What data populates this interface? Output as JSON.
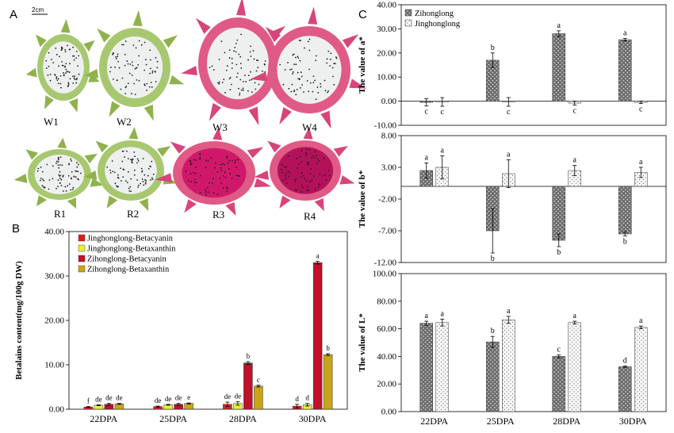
{
  "colors": {
    "jh_betacyanin": "#e31b1b",
    "jh_betaxanthin": "#e6f03a",
    "zh_betacyanin": "#c0102a",
    "zh_betaxanthin": "#c9a418",
    "zihonglong_fill": "#707070",
    "jinghonglong_fill": "#f2f2f2",
    "peel_green": "#a8c870",
    "peel_pink": "#e05a86",
    "flesh_white": "#eef0f0",
    "flesh_red": "#b3125a",
    "seeds": "#1d1d1d"
  },
  "panel_a": {
    "letter": "A",
    "scale_label": "2cm",
    "fruits": [
      {
        "label": "W1",
        "peel": "green",
        "flesh": "white"
      },
      {
        "label": "W2",
        "peel": "green",
        "flesh": "white"
      },
      {
        "label": "W3",
        "peel": "pink",
        "flesh": "white"
      },
      {
        "label": "W4",
        "peel": "pink",
        "flesh": "white"
      },
      {
        "label": "R1",
        "peel": "green",
        "flesh": "white"
      },
      {
        "label": "R2",
        "peel": "green",
        "flesh": "white"
      },
      {
        "label": "R3",
        "peel": "pink",
        "flesh": "pinkred"
      },
      {
        "label": "R4",
        "peel": "pink",
        "flesh": "red"
      }
    ]
  },
  "chart_data": [
    {
      "id": "B",
      "letter": "B",
      "type": "bar",
      "categories": [
        "22DPA",
        "25DPA",
        "28DPA",
        "30DPA"
      ],
      "ylabel": "Betalains content(mg/100g  DW)",
      "ylim": [
        0,
        40
      ],
      "yticks": [
        "0.00",
        "10.00",
        "20.00",
        "30.00",
        "40.00"
      ],
      "legend_position": "top-left",
      "series": [
        {
          "name": "Jinghonglong-Betacyanin",
          "color_key": "jh_betacyanin",
          "values": [
            0.5,
            0.6,
            1.1,
            0.7
          ],
          "errors": [
            0.1,
            0.1,
            0.5,
            0.4
          ],
          "letters": [
            "f",
            "de",
            "de",
            "d"
          ]
        },
        {
          "name": "Jinghonglong-Betaxanthin",
          "color_key": "jh_betaxanthin",
          "values": [
            0.9,
            1.0,
            1.3,
            1.0
          ],
          "errors": [
            0.1,
            0.1,
            0.4,
            0.3
          ],
          "letters": [
            "de",
            "de",
            "de",
            "d"
          ]
        },
        {
          "name": "Zihonglong-Betacyanin",
          "color_key": "zh_betacyanin",
          "values": [
            1.1,
            1.1,
            10.4,
            33.0
          ],
          "errors": [
            0.2,
            0.2,
            0.3,
            0.3
          ],
          "letters": [
            "de",
            "de",
            "b",
            "a"
          ]
        },
        {
          "name": "Zihonglong-Betaxanthin",
          "color_key": "zh_betaxanthin",
          "values": [
            1.2,
            1.3,
            5.2,
            12.3
          ],
          "errors": [
            0.1,
            0.1,
            0.2,
            0.2
          ],
          "letters": [
            "de",
            "e",
            "c",
            "b"
          ]
        }
      ]
    },
    {
      "id": "C1",
      "letter": "C",
      "type": "bar",
      "categories": [
        "22DPA",
        "25DPA",
        "28DPA",
        "30DPA"
      ],
      "ylabel": "The value of  a*",
      "ylim": [
        -10,
        40
      ],
      "yticks": [
        "-10.00",
        "0.00",
        "10.00",
        "20.00",
        "30.00",
        "40.00"
      ],
      "legend_position": "top-left",
      "series": [
        {
          "name": "Zihonglong",
          "color_key": "zihonglong_fill",
          "pattern": "dots-dark",
          "values": [
            -0.5,
            17.0,
            28.0,
            25.5
          ],
          "errors": [
            1.5,
            3.0,
            1.2,
            0.5
          ],
          "letters": [
            "c",
            "b",
            "a",
            "a"
          ]
        },
        {
          "name": "Jinghonglong",
          "color_key": "jinghonglong_fill",
          "pattern": "dots-light",
          "values": [
            -0.3,
            -0.3,
            -0.8,
            -0.5
          ],
          "errors": [
            1.8,
            1.8,
            0.8,
            0.5
          ],
          "letters": [
            "c",
            "c",
            "c",
            "c"
          ]
        }
      ]
    },
    {
      "id": "C2",
      "type": "bar",
      "categories": [
        "22DPA",
        "25DPA",
        "28DPA",
        "30DPA"
      ],
      "ylabel": "The value of  b*",
      "ylim": [
        -12,
        8
      ],
      "yticks": [
        "-12.00",
        "-7.00",
        "-2.00",
        "3.00",
        "8.00"
      ],
      "zero_line": 0,
      "series": [
        {
          "name": "Zihonglong",
          "color_key": "zihonglong_fill",
          "pattern": "dots-dark",
          "values": [
            2.5,
            -7.0,
            -8.5,
            -7.5
          ],
          "errors": [
            1.2,
            3.5,
            1.0,
            0.3
          ],
          "letters": [
            "a",
            "b",
            "b",
            "b"
          ]
        },
        {
          "name": "Jinghonglong",
          "color_key": "jinghonglong_fill",
          "pattern": "dots-light",
          "values": [
            3.0,
            2.0,
            2.5,
            2.2
          ],
          "errors": [
            1.8,
            2.2,
            0.8,
            0.8
          ],
          "letters": [
            "a",
            "a",
            "a",
            "a"
          ]
        }
      ]
    },
    {
      "id": "C3",
      "type": "bar",
      "categories": [
        "22DPA",
        "25DPA",
        "28DPA",
        "30DPA"
      ],
      "ylabel": "The value of  L*",
      "ylim": [
        0,
        100
      ],
      "yticks": [
        "0.00",
        "20.00",
        "40.00",
        "60.00",
        "80.00",
        "100.00"
      ],
      "series": [
        {
          "name": "Zihonglong",
          "color_key": "zihonglong_fill",
          "pattern": "dots-dark",
          "values": [
            64.0,
            50.5,
            40.0,
            32.5
          ],
          "errors": [
            1.5,
            4.0,
            1.0,
            0.5
          ],
          "letters": [
            "a",
            "b",
            "c",
            "d"
          ]
        },
        {
          "name": "Jinghonglong",
          "color_key": "jinghonglong_fill",
          "pattern": "dots-light",
          "values": [
            64.5,
            66.5,
            64.5,
            61.0
          ],
          "errors": [
            2.5,
            2.5,
            1.0,
            1.0
          ],
          "letters": [
            "a",
            "a",
            "a",
            "a"
          ]
        }
      ]
    }
  ]
}
